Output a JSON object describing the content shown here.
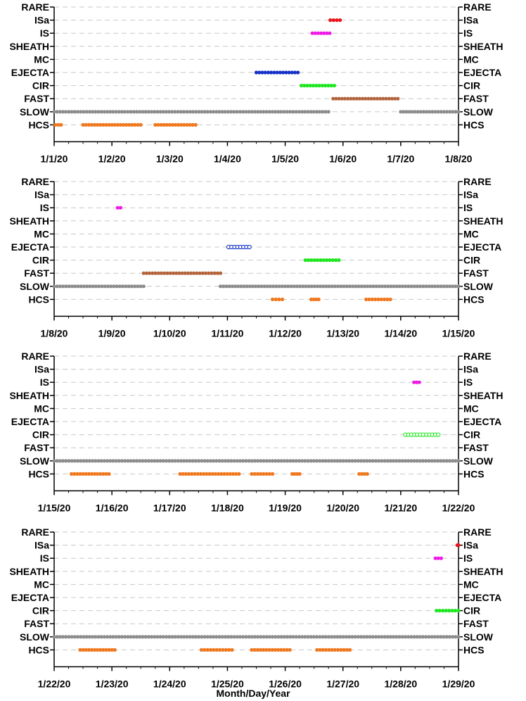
{
  "chart_data": {
    "type": "scatter",
    "categories": [
      "RARE",
      "ISa",
      "IS",
      "SHEATH",
      "MC",
      "EJECTA",
      "CIR",
      "FAST",
      "SLOW",
      "HCS"
    ],
    "xlabel": "Month/Day/Year",
    "colors": {
      "ISa": "#e8141c",
      "IS": "#ee19e6",
      "EJECTA": "#1431c8",
      "CIR": "#1ee61e",
      "FAST": "#b4643c",
      "SLOW": "#8c8c8c",
      "HCS": "#f0781e"
    },
    "panels": [
      {
        "xticks": [
          "1/1/20",
          "1/2/20",
          "1/3/20",
          "1/4/20",
          "1/5/20",
          "1/6/20",
          "1/7/20",
          "1/8/20"
        ],
        "segments": [
          {
            "category": "ISa",
            "start": 4.78,
            "end": 4.95
          },
          {
            "category": "IS",
            "start": 4.47,
            "end": 4.77
          },
          {
            "category": "EJECTA",
            "start": 3.5,
            "end": 4.22
          },
          {
            "category": "CIR",
            "start": 4.28,
            "end": 4.85
          },
          {
            "category": "FAST",
            "start": 4.83,
            "end": 5.95
          },
          {
            "category": "SLOW",
            "start": 0.0,
            "end": 4.75
          },
          {
            "category": "SLOW",
            "start": 6.0,
            "end": 7.0
          },
          {
            "category": "HCS",
            "start": 0.02,
            "end": 0.12
          },
          {
            "category": "HCS",
            "start": 0.5,
            "end": 1.5
          },
          {
            "category": "HCS",
            "start": 1.75,
            "end": 2.45
          }
        ]
      },
      {
        "xticks": [
          "1/8/20",
          "1/9/20",
          "1/10/20",
          "1/11/20",
          "1/12/20",
          "1/13/20",
          "1/14/20",
          "1/15/20"
        ],
        "segments": [
          {
            "category": "IS",
            "start": 1.1,
            "end": 1.15
          },
          {
            "category": "EJECTA",
            "start": 3.02,
            "end": 3.38,
            "hollow": true
          },
          {
            "category": "CIR",
            "start": 4.35,
            "end": 4.93
          },
          {
            "category": "FAST",
            "start": 1.55,
            "end": 2.88
          },
          {
            "category": "SLOW",
            "start": 0.0,
            "end": 1.55
          },
          {
            "category": "SLOW",
            "start": 2.88,
            "end": 7.0
          },
          {
            "category": "HCS",
            "start": 3.78,
            "end": 3.95
          },
          {
            "category": "HCS",
            "start": 4.45,
            "end": 4.58
          },
          {
            "category": "HCS",
            "start": 5.4,
            "end": 5.82
          }
        ]
      },
      {
        "xticks": [
          "1/15/20",
          "1/16/20",
          "1/17/20",
          "1/18/20",
          "1/19/20",
          "1/20/20",
          "1/21/20",
          "1/22/20"
        ],
        "segments": [
          {
            "category": "IS",
            "start": 6.23,
            "end": 6.32
          },
          {
            "category": "CIR",
            "start": 6.08,
            "end": 6.65,
            "hollow": true
          },
          {
            "category": "SLOW",
            "start": 0.0,
            "end": 7.0
          },
          {
            "category": "HCS",
            "start": 0.3,
            "end": 0.95
          },
          {
            "category": "HCS",
            "start": 2.18,
            "end": 3.2
          },
          {
            "category": "HCS",
            "start": 3.42,
            "end": 3.78
          },
          {
            "category": "HCS",
            "start": 4.12,
            "end": 4.25
          },
          {
            "category": "HCS",
            "start": 5.28,
            "end": 5.42
          }
        ]
      },
      {
        "xticks": [
          "1/22/20",
          "1/23/20",
          "1/24/20",
          "1/25/20",
          "1/26/20",
          "1/27/20",
          "1/28/20",
          "1/29/20"
        ],
        "segments": [
          {
            "category": "ISa",
            "start": 6.98,
            "end": 7.0
          },
          {
            "category": "IS",
            "start": 6.6,
            "end": 6.7
          },
          {
            "category": "CIR",
            "start": 6.62,
            "end": 7.0
          },
          {
            "category": "SLOW",
            "start": 0.0,
            "end": 7.0
          },
          {
            "category": "HCS",
            "start": 0.45,
            "end": 1.05
          },
          {
            "category": "HCS",
            "start": 2.55,
            "end": 3.08
          },
          {
            "category": "HCS",
            "start": 3.42,
            "end": 4.08
          },
          {
            "category": "HCS",
            "start": 4.55,
            "end": 5.12
          }
        ]
      }
    ]
  }
}
